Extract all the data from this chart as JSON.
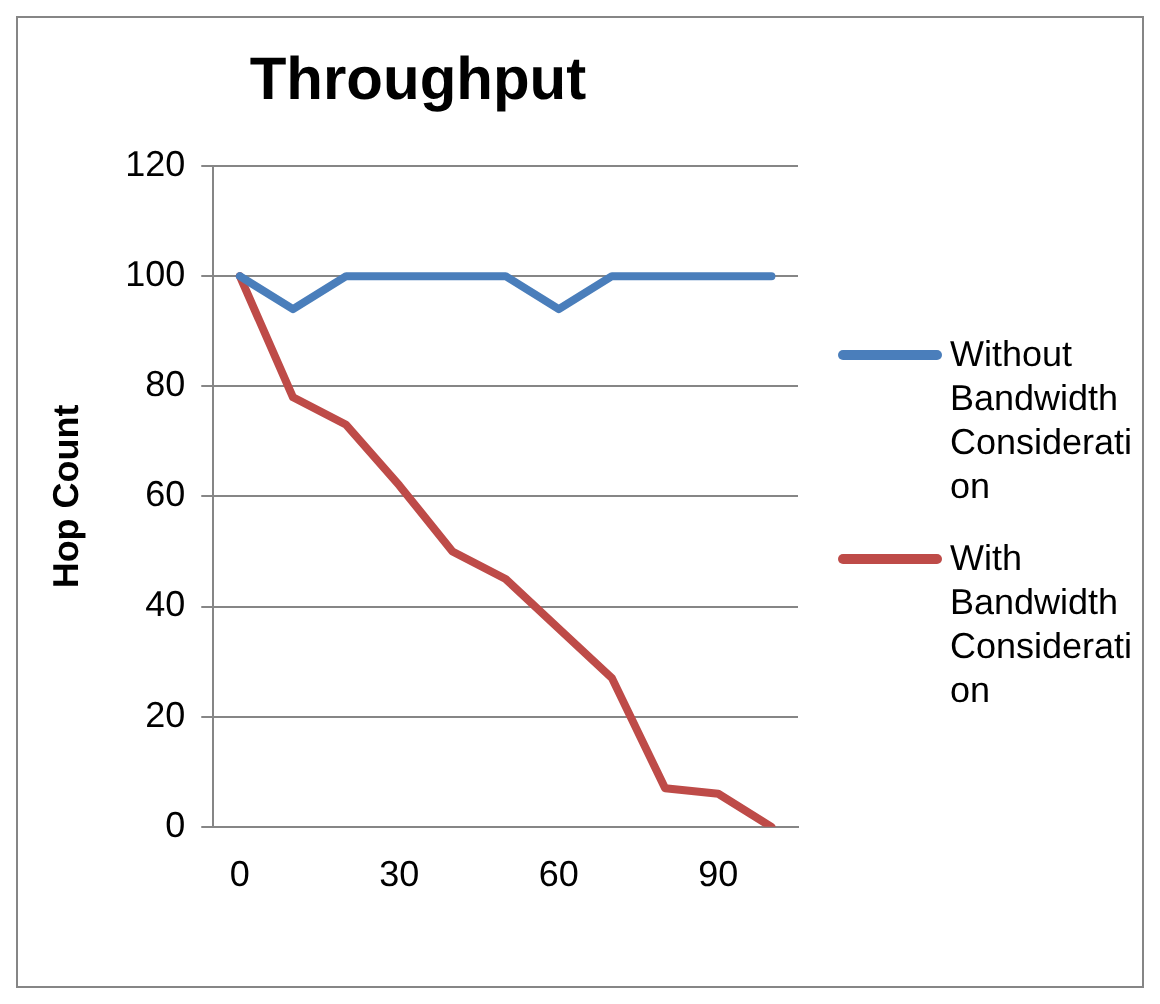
{
  "chart_data": {
    "type": "line",
    "title": "Throughput",
    "ylabel": "Hop Count",
    "categories": [
      "0",
      null,
      null,
      "30",
      null,
      null,
      "60",
      null,
      null,
      "90",
      null
    ],
    "series": [
      {
        "name": "Without Bandwidth Consideration",
        "color": "#4a7ebb",
        "values": [
          100,
          94,
          100,
          100,
          100,
          100,
          94,
          100,
          100,
          100,
          100
        ]
      },
      {
        "name": "With Bandwidth Consideration",
        "color": "#be4b48",
        "values": [
          100,
          78,
          73,
          62,
          50,
          45,
          36,
          27,
          7,
          6,
          0
        ]
      }
    ],
    "ylim": [
      0,
      120
    ],
    "yticks": [
      0,
      20,
      40,
      60,
      80,
      100,
      120
    ],
    "grid": "y",
    "legend": "right",
    "marker": "none",
    "line_style": "solid"
  }
}
